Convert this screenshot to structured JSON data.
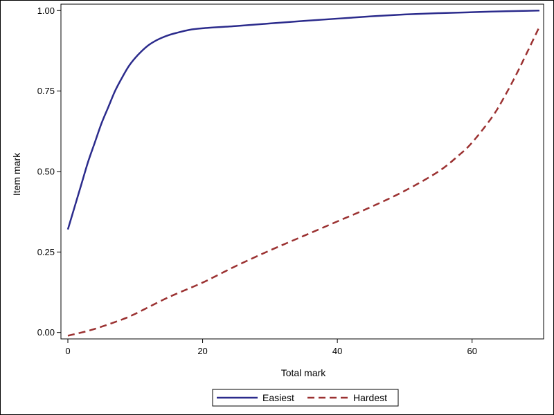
{
  "chart_data": {
    "type": "line",
    "xlabel": "Total mark",
    "ylabel": "Item mark",
    "xlim": [
      0,
      70
    ],
    "ylim": [
      -0.02,
      1.02
    ],
    "xticks": [
      0,
      20,
      40,
      60
    ],
    "xtick_labels": [
      "0",
      "20",
      "40",
      "60"
    ],
    "yticks": [
      0,
      0.25,
      0.5,
      0.75,
      1.0
    ],
    "ytick_labels": [
      "0.00",
      "0.25",
      "0.50",
      "0.75",
      "1.00"
    ],
    "grid": false,
    "legend_position": "bottom",
    "series": [
      {
        "name": "Easiest",
        "color": "#2b2b8c",
        "dash": "solid",
        "x": [
          0,
          1,
          2,
          3,
          4,
          5,
          6,
          7,
          8,
          9,
          10,
          11,
          12,
          13,
          14,
          15,
          16,
          18,
          20,
          25,
          30,
          35,
          40,
          45,
          50,
          55,
          60,
          65,
          70
        ],
        "y": [
          0.32,
          0.39,
          0.46,
          0.53,
          0.59,
          0.65,
          0.7,
          0.75,
          0.79,
          0.826,
          0.853,
          0.875,
          0.893,
          0.906,
          0.916,
          0.924,
          0.93,
          0.94,
          0.945,
          0.952,
          0.96,
          0.968,
          0.975,
          0.982,
          0.988,
          0.992,
          0.995,
          0.998,
          1.0
        ]
      },
      {
        "name": "Hardest",
        "color": "#9b3131",
        "dash": "dashed",
        "x": [
          0,
          3,
          5,
          8,
          10,
          15,
          20,
          25,
          30,
          35,
          40,
          45,
          50,
          55,
          58,
          60,
          63,
          65,
          67,
          70
        ],
        "y": [
          -0.01,
          0.005,
          0.018,
          0.04,
          0.058,
          0.11,
          0.155,
          0.207,
          0.255,
          0.3,
          0.345,
          0.39,
          0.44,
          0.5,
          0.55,
          0.59,
          0.67,
          0.74,
          0.82,
          0.95
        ]
      }
    ]
  }
}
